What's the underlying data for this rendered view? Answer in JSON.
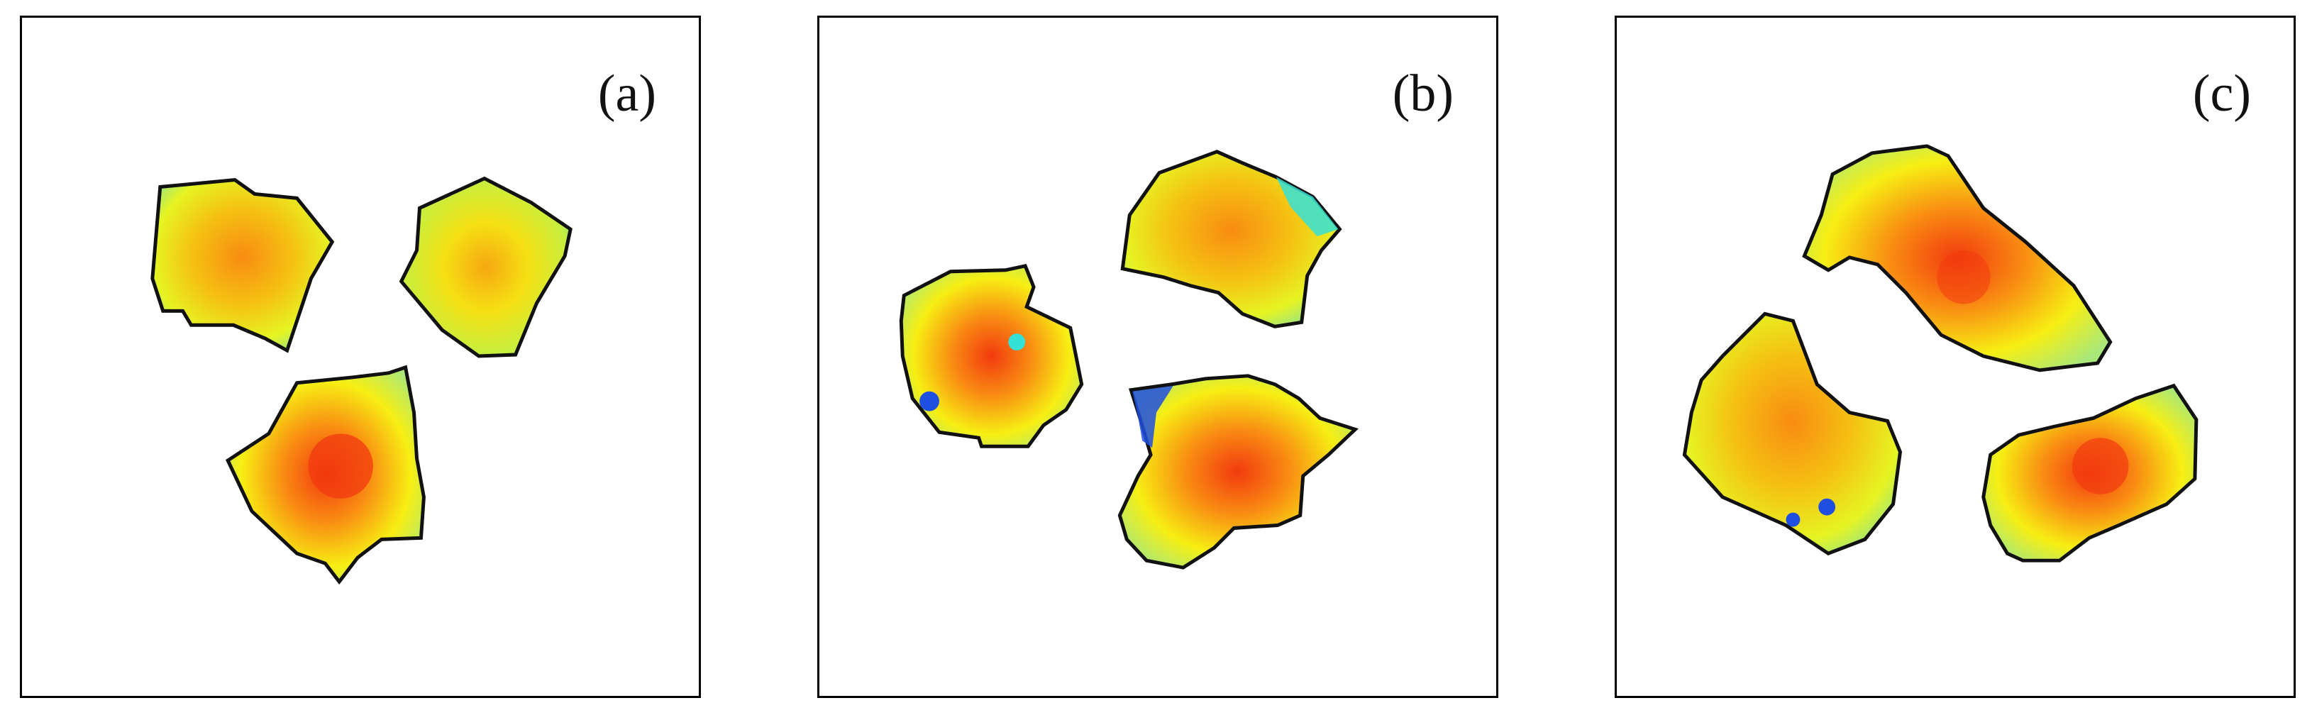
{
  "panels": [
    {
      "label": "(a)"
    },
    {
      "label": "(b)"
    },
    {
      "label": "(c)"
    }
  ],
  "colors": {
    "outline": "#111111",
    "core_red": "#f23a0f",
    "orange": "#f98b12",
    "yellow": "#f7f213",
    "green": "#9ee67a",
    "cyan": "#35e0d6",
    "blue": "#1f4fe0"
  }
}
